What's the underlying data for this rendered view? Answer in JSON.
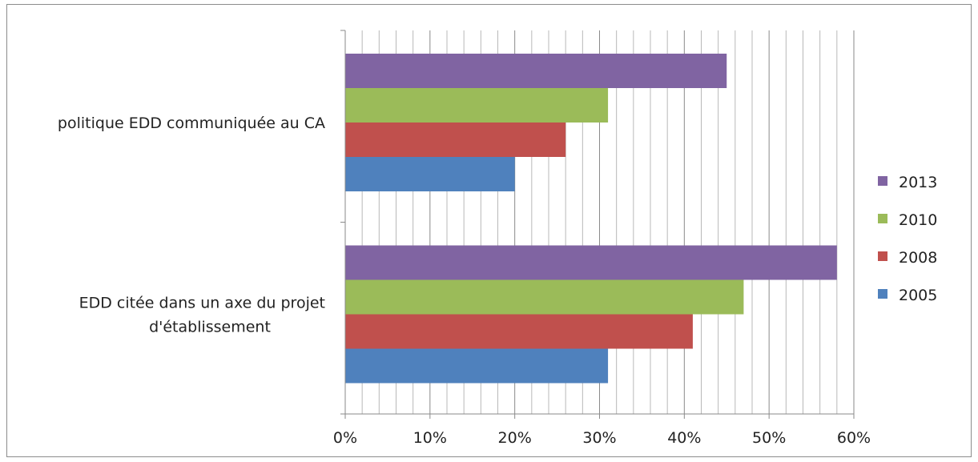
{
  "chart_data": {
    "type": "bar",
    "orientation": "horizontal",
    "categories": [
      [
        "politique EDD communiquée au CA"
      ],
      [
        "EDD citée dans un axe du projet",
        "d'établissement"
      ]
    ],
    "series": [
      {
        "name": "2005",
        "color": "#4f81bd",
        "values": [
          20,
          31
        ]
      },
      {
        "name": "2008",
        "color": "#c0504d",
        "values": [
          26,
          41
        ]
      },
      {
        "name": "2010",
        "color": "#9bbb59",
        "values": [
          31,
          47
        ]
      },
      {
        "name": "2013",
        "color": "#8064a2",
        "values": [
          45,
          58
        ]
      }
    ],
    "xlim": [
      0,
      60
    ],
    "xticks": [
      0,
      10,
      20,
      30,
      40,
      50,
      60
    ],
    "tick_suffix": "%",
    "minor_grid_step": 2,
    "grid": true,
    "legend_position": "right",
    "legend_order": [
      "2013",
      "2010",
      "2008",
      "2005"
    ],
    "title": "",
    "xlabel": "",
    "ylabel": ""
  }
}
